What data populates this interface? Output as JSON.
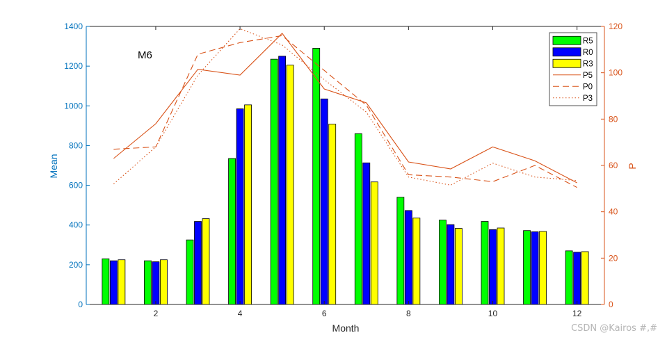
{
  "colors": {
    "left_axis": "#0072bd",
    "right_axis": "#d95319",
    "r5": "#00ff00",
    "r0": "#0000ff",
    "r3": "#ffff00",
    "text": "#262626"
  },
  "watermark": "CSDN @Kairos #,#",
  "chart_data": {
    "type": "bar",
    "annotation": "M6",
    "xlabel": "Month",
    "ylabel_left": "Mean",
    "ylabel_right": "P",
    "x": [
      1,
      2,
      3,
      4,
      5,
      6,
      7,
      8,
      9,
      10,
      11,
      12
    ],
    "xlim": [
      0.35,
      12.65
    ],
    "xticks": [
      2,
      4,
      6,
      8,
      10,
      12
    ],
    "ylim_left": [
      0,
      1400
    ],
    "yticks_left": [
      0,
      200,
      400,
      600,
      800,
      1000,
      1200,
      1400
    ],
    "ylim_right": [
      0,
      120
    ],
    "yticks_right": [
      0,
      20,
      40,
      60,
      80,
      100,
      120
    ],
    "legend_position": "top-right",
    "bar_series": [
      {
        "name": "R5",
        "color": "#00ff00",
        "values": [
          230,
          220,
          325,
          735,
          1235,
          1290,
          860,
          540,
          425,
          418,
          372,
          270
        ]
      },
      {
        "name": "R0",
        "color": "#0000ff",
        "values": [
          220,
          215,
          418,
          985,
          1250,
          1035,
          713,
          473,
          402,
          377,
          366,
          263
        ]
      },
      {
        "name": "R3",
        "color": "#ffff00",
        "values": [
          225,
          225,
          432,
          1005,
          1205,
          908,
          617,
          435,
          383,
          385,
          368,
          266
        ]
      }
    ],
    "line_series": [
      {
        "name": "P5",
        "style": "solid",
        "color": "#d95319",
        "values": [
          63,
          78,
          101.5,
          99,
          117,
          93,
          87,
          61.5,
          58.5,
          68,
          62,
          52.5
        ]
      },
      {
        "name": "P0",
        "style": "dashed",
        "color": "#d95319",
        "values": [
          67,
          68,
          108,
          113,
          116,
          101,
          86,
          56,
          55,
          53,
          60,
          50.5
        ]
      },
      {
        "name": "P3",
        "style": "dotted",
        "color": "#d95319",
        "values": [
          52,
          68,
          99,
          119,
          112,
          97,
          83,
          55,
          51.5,
          61,
          55,
          53.5
        ]
      }
    ]
  }
}
